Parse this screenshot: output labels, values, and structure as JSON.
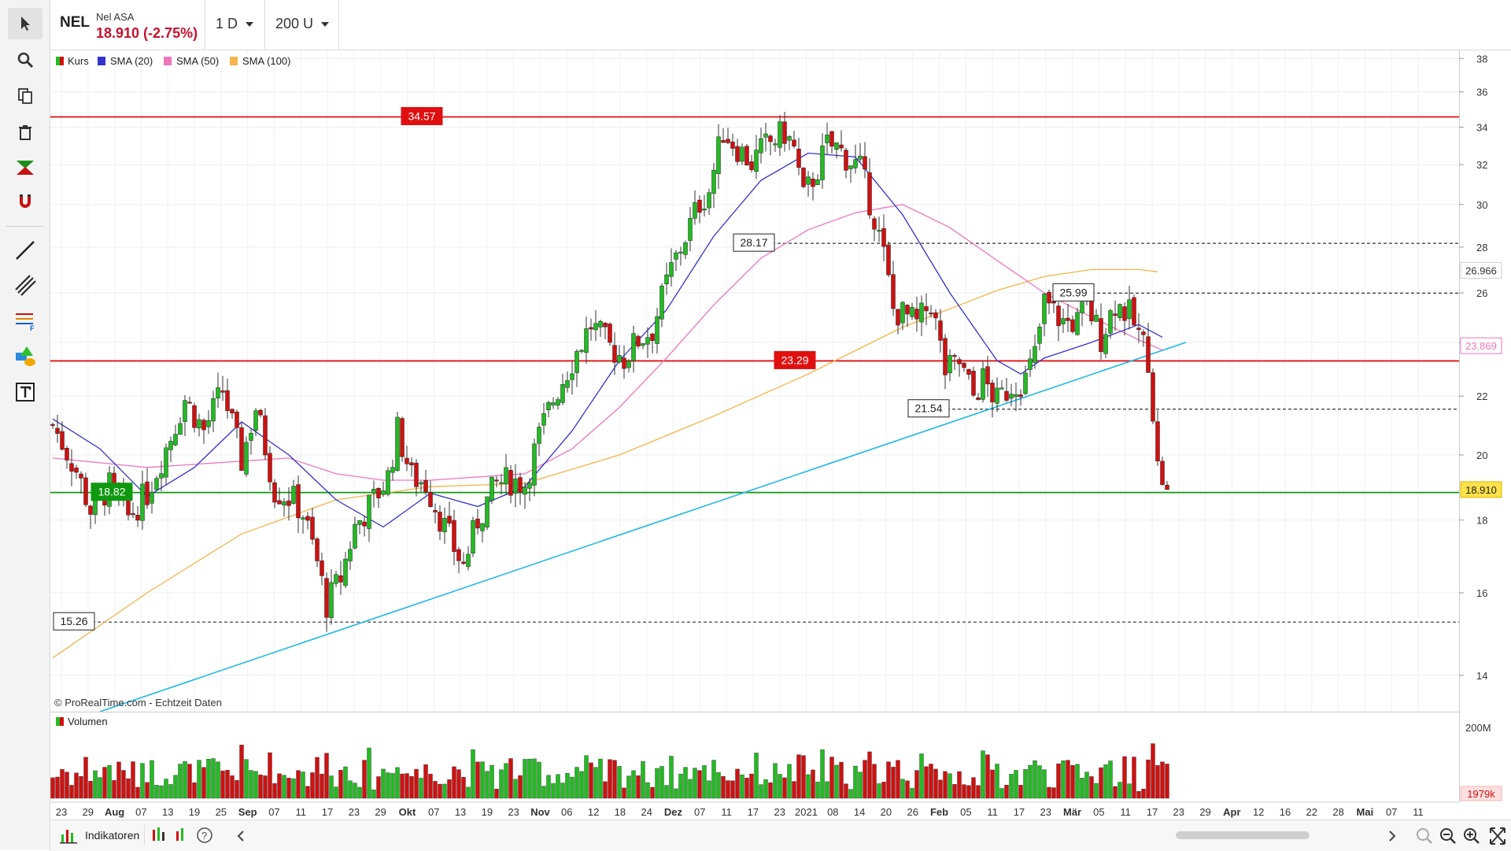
{
  "header": {
    "symbol": "NEL",
    "name": "Nel ASA",
    "price_change": "18.910 (-2.75%)",
    "timeframe": "1 D",
    "units": "200 U"
  },
  "toolbar": {
    "icons": [
      "cursor-icon",
      "zoom-icon",
      "copy-icon",
      "trash-icon",
      "trend-icon",
      "magnet-icon",
      "line-icon",
      "parallel-lines-icon",
      "fibonacci-icon",
      "shapes-icon",
      "text-icon"
    ]
  },
  "legend": {
    "kurs": "Kurs",
    "sma20": "SMA (20)",
    "sma50": "SMA (50)",
    "sma100": "SMA (100)",
    "volume": "Volumen"
  },
  "credit": "© ProRealTime.com - Echtzeit Daten",
  "bottom": {
    "indicators": "Indikatoren"
  },
  "colors": {
    "up": "#22bb22",
    "down": "#d01010",
    "sma20": "#3333cc",
    "sma50": "#ee77bb",
    "sma100": "#f5b54a",
    "trend": "#22b8e8",
    "resistance": "#e01010",
    "support": "#109910"
  },
  "chart_data": {
    "type": "candlestick",
    "yscale": "log",
    "ylim": [
      13.2,
      38.5
    ],
    "y_ticks": [
      "14",
      "16",
      "18",
      "20",
      "22",
      "24",
      "26",
      "28",
      "30",
      "32",
      "34",
      "36",
      "38"
    ],
    "x_ticks": [
      "23",
      "29",
      "Aug",
      "07",
      "13",
      "19",
      "25",
      "Sep",
      "07",
      "11",
      "17",
      "23",
      "29",
      "Okt",
      "07",
      "13",
      "19",
      "23",
      "Nov",
      "06",
      "12",
      "18",
      "24",
      "Dez",
      "07",
      "11",
      "17",
      "23",
      "2021",
      "08",
      "14",
      "20",
      "26",
      "Feb",
      "05",
      "11",
      "17",
      "23",
      "Mär",
      "05",
      "11",
      "17",
      "23",
      "29",
      "Apr",
      "12",
      "16",
      "22",
      "28",
      "Mai",
      "07",
      "11"
    ],
    "price_levels": [
      {
        "label": "34.57",
        "value": 34.57,
        "style": "solid",
        "color": "#e01010"
      },
      {
        "label": "28.17",
        "value": 28.17,
        "style": "dashed",
        "color": "#333333"
      },
      {
        "label": "25.99",
        "value": 25.99,
        "style": "dashed",
        "color": "#333333"
      },
      {
        "label": "23.29",
        "value": 23.29,
        "style": "solid",
        "color": "#e01010"
      },
      {
        "label": "21.54",
        "value": 21.54,
        "style": "dashed",
        "color": "#333333"
      },
      {
        "label": "18.82",
        "value": 18.82,
        "style": "solid",
        "color": "#109910"
      },
      {
        "label": "15.26",
        "value": 15.26,
        "style": "dashed",
        "color": "#333333"
      }
    ],
    "right_labels": [
      {
        "label": "26.966",
        "value": 26.966
      },
      {
        "label": "23.869",
        "value": 23.869
      },
      {
        "label": "18.910",
        "value": 18.91
      }
    ],
    "volume_ticks": [
      "200M",
      "1979k"
    ],
    "anchors": [
      [
        0,
        21.0
      ],
      [
        5,
        19.5
      ],
      [
        8,
        18.3
      ],
      [
        12,
        19.0
      ],
      [
        16,
        18.1
      ],
      [
        20,
        18.8
      ],
      [
        25,
        20.6
      ],
      [
        28,
        21.9
      ],
      [
        32,
        20.8
      ],
      [
        36,
        22.2
      ],
      [
        40,
        19.8
      ],
      [
        43,
        21.6
      ],
      [
        47,
        18.9
      ],
      [
        51,
        18.6
      ],
      [
        53,
        18.2
      ],
      [
        56,
        16.8
      ],
      [
        58,
        15.7
      ],
      [
        61,
        16.4
      ],
      [
        64,
        17.8
      ],
      [
        68,
        18.6
      ],
      [
        71,
        19.3
      ],
      [
        73,
        20.8
      ],
      [
        76,
        19.3
      ],
      [
        79,
        19.1
      ],
      [
        82,
        18.1
      ],
      [
        85,
        17.2
      ],
      [
        87,
        16.7
      ],
      [
        90,
        18.0
      ],
      [
        94,
        19.1
      ],
      [
        97,
        19.2
      ],
      [
        100,
        19.1
      ],
      [
        103,
        20.6
      ],
      [
        106,
        21.9
      ],
      [
        110,
        23.3
      ],
      [
        114,
        24.7
      ],
      [
        118,
        23.8
      ],
      [
        121,
        23.4
      ],
      [
        124,
        24.1
      ],
      [
        127,
        24.5
      ],
      [
        131,
        27.0
      ],
      [
        134,
        28.5
      ],
      [
        137,
        30.1
      ],
      [
        139,
        30.7
      ],
      [
        142,
        33.8
      ],
      [
        145,
        32.9
      ],
      [
        148,
        32.1
      ],
      [
        151,
        33.0
      ],
      [
        155,
        33.7
      ],
      [
        157,
        32.8
      ],
      [
        159,
        30.3
      ],
      [
        162,
        31.8
      ],
      [
        164,
        33.0
      ],
      [
        166,
        32.9
      ],
      [
        168,
        32.4
      ],
      [
        171,
        31.8
      ],
      [
        174,
        29.4
      ],
      [
        176,
        27.6
      ],
      [
        178,
        25.3
      ],
      [
        181,
        25.0
      ],
      [
        183,
        24.7
      ],
      [
        186,
        25.6
      ],
      [
        189,
        22.9
      ],
      [
        192,
        23.2
      ],
      [
        195,
        22.0
      ],
      [
        197,
        22.6
      ],
      [
        200,
        21.8
      ],
      [
        203,
        22.4
      ],
      [
        206,
        22.6
      ],
      [
        208,
        23.5
      ],
      [
        210,
        25.6
      ],
      [
        214,
        24.8
      ],
      [
        217,
        24.8
      ],
      [
        219,
        25.5
      ],
      [
        222,
        24.2
      ],
      [
        225,
        25.6
      ],
      [
        228,
        25.1
      ],
      [
        231,
        23.9
      ],
      [
        232,
        23.4
      ],
      [
        234,
        19.6
      ],
      [
        236,
        18.91
      ]
    ],
    "sma20_points": [
      [
        0,
        21.2
      ],
      [
        10,
        20.2
      ],
      [
        20,
        18.7
      ],
      [
        30,
        19.6
      ],
      [
        40,
        21.1
      ],
      [
        50,
        20.0
      ],
      [
        60,
        18.6
      ],
      [
        70,
        17.8
      ],
      [
        80,
        18.8
      ],
      [
        90,
        18.4
      ],
      [
        100,
        19.0
      ],
      [
        110,
        20.8
      ],
      [
        120,
        23.3
      ],
      [
        130,
        25.3
      ],
      [
        140,
        28.5
      ],
      [
        150,
        31.2
      ],
      [
        160,
        32.6
      ],
      [
        170,
        32.4
      ],
      [
        180,
        29.5
      ],
      [
        190,
        26.0
      ],
      [
        200,
        23.3
      ],
      [
        205,
        22.8
      ],
      [
        210,
        23.4
      ],
      [
        220,
        24.0
      ],
      [
        230,
        24.7
      ],
      [
        235,
        24.2
      ]
    ],
    "sma50_points": [
      [
        0,
        19.9
      ],
      [
        20,
        19.6
      ],
      [
        40,
        19.8
      ],
      [
        50,
        19.9
      ],
      [
        60,
        19.4
      ],
      [
        70,
        19.2
      ],
      [
        80,
        19.2
      ],
      [
        100,
        19.4
      ],
      [
        110,
        20.2
      ],
      [
        120,
        21.6
      ],
      [
        130,
        23.4
      ],
      [
        140,
        25.5
      ],
      [
        150,
        27.5
      ],
      [
        160,
        28.8
      ],
      [
        170,
        29.6
      ],
      [
        180,
        30.0
      ],
      [
        190,
        28.9
      ],
      [
        200,
        27.4
      ],
      [
        210,
        26.0
      ],
      [
        220,
        25.0
      ],
      [
        230,
        24.1
      ],
      [
        235,
        23.7
      ]
    ],
    "sma100_points": [
      [
        0,
        14.4
      ],
      [
        20,
        16.0
      ],
      [
        40,
        17.6
      ],
      [
        60,
        18.6
      ],
      [
        80,
        19.0
      ],
      [
        100,
        19.1
      ],
      [
        120,
        20.0
      ],
      [
        140,
        21.3
      ],
      [
        160,
        22.8
      ],
      [
        180,
        24.6
      ],
      [
        200,
        26.1
      ],
      [
        210,
        26.7
      ],
      [
        220,
        27.0
      ],
      [
        230,
        27.0
      ],
      [
        234,
        26.9
      ]
    ],
    "trendline": {
      "from": [
        10,
        13.2
      ],
      "to": [
        240,
        24.0
      ]
    }
  }
}
